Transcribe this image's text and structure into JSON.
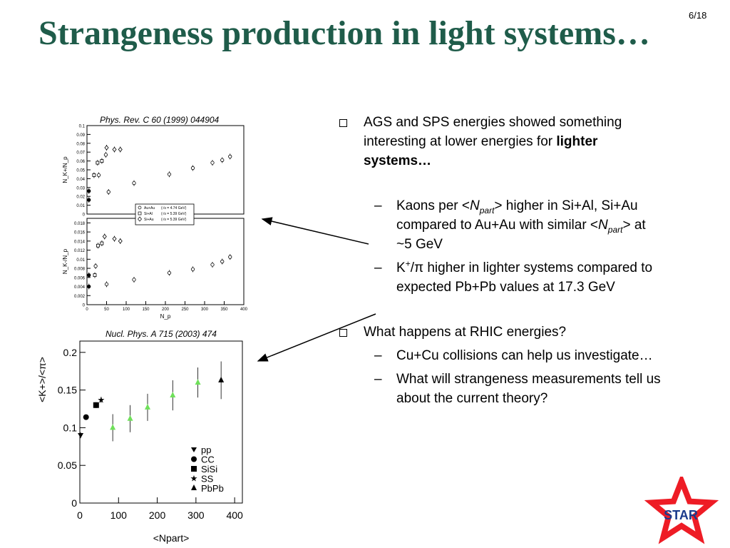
{
  "slide": {
    "number": "6/18",
    "title": "Strangeness production in light systems…"
  },
  "top_plot": {
    "caption": "Phys. Rev. C 60 (1999) 044904",
    "upper_ylabel": "N_K+/N_p",
    "lower_ylabel": "N_K-/N_p",
    "xlabel": "N_p",
    "upper_yticks": [
      "0",
      "0.01",
      "0.02",
      "0.03",
      "0.04",
      "0.05",
      "0.06",
      "0.07",
      "0.08",
      "0.09",
      "0.1"
    ],
    "lower_yticks": [
      "0",
      "0.002",
      "0.004",
      "0.006",
      "0.008",
      "0.01",
      "0.012",
      "0.014",
      "0.016",
      "0.018"
    ],
    "xticks": [
      "0",
      "50",
      "100",
      "150",
      "200",
      "250",
      "300",
      "350",
      "400"
    ],
    "legend": [
      {
        "system": "Au+Au",
        "energy": "(√s = 4.74 GeV)"
      },
      {
        "system": "Si+Al",
        "energy": "(√s = 5.39 GeV)"
      },
      {
        "system": "Si+Au",
        "energy": "(√s = 5.39 GeV)"
      }
    ],
    "upper_points": [
      {
        "x": 5,
        "y": 0.026,
        "m": "filled"
      },
      {
        "x": 5,
        "y": 0.016,
        "m": "filled"
      },
      {
        "x": 18,
        "y": 0.044,
        "m": "square"
      },
      {
        "x": 27,
        "y": 0.058,
        "m": "square"
      },
      {
        "x": 38,
        "y": 0.06,
        "m": "square"
      },
      {
        "x": 48,
        "y": 0.067,
        "m": "circle"
      },
      {
        "x": 50,
        "y": 0.075,
        "m": "diamond"
      },
      {
        "x": 70,
        "y": 0.073,
        "m": "diamond"
      },
      {
        "x": 85,
        "y": 0.073,
        "m": "diamond"
      },
      {
        "x": 55,
        "y": 0.025,
        "m": "circle"
      },
      {
        "x": 30,
        "y": 0.044,
        "m": "circle"
      },
      {
        "x": 120,
        "y": 0.035,
        "m": "circle"
      },
      {
        "x": 210,
        "y": 0.045,
        "m": "circle"
      },
      {
        "x": 270,
        "y": 0.052,
        "m": "circle"
      },
      {
        "x": 320,
        "y": 0.058,
        "m": "circle"
      },
      {
        "x": 345,
        "y": 0.061,
        "m": "circle"
      },
      {
        "x": 365,
        "y": 0.065,
        "m": "circle"
      }
    ],
    "lower_points": [
      {
        "x": 5,
        "y": 0.0065,
        "m": "filled"
      },
      {
        "x": 5,
        "y": 0.004,
        "m": "filled"
      },
      {
        "x": 20,
        "y": 0.0065,
        "m": "square"
      },
      {
        "x": 22,
        "y": 0.0085,
        "m": "circle"
      },
      {
        "x": 28,
        "y": 0.013,
        "m": "square"
      },
      {
        "x": 38,
        "y": 0.0135,
        "m": "square"
      },
      {
        "x": 45,
        "y": 0.015,
        "m": "diamond"
      },
      {
        "x": 70,
        "y": 0.0145,
        "m": "diamond"
      },
      {
        "x": 85,
        "y": 0.014,
        "m": "diamond"
      },
      {
        "x": 50,
        "y": 0.0045,
        "m": "circle"
      },
      {
        "x": 120,
        "y": 0.0055,
        "m": "circle"
      },
      {
        "x": 210,
        "y": 0.007,
        "m": "circle"
      },
      {
        "x": 270,
        "y": 0.0078,
        "m": "circle"
      },
      {
        "x": 320,
        "y": 0.0088,
        "m": "circle"
      },
      {
        "x": 345,
        "y": 0.0095,
        "m": "circle"
      },
      {
        "x": 365,
        "y": 0.0105,
        "m": "circle"
      }
    ]
  },
  "bottom_plot": {
    "caption": "Nucl. Phys. A 715 (2003) 474",
    "ylabel": "<K+>/<π>",
    "xlabel": "<Npart>",
    "yticks": [
      "0",
      "0.05",
      "0.1",
      "0.15",
      "0.2"
    ],
    "xticks": [
      "0",
      "100",
      "200",
      "300",
      "400"
    ],
    "legend": [
      "pp",
      "CC",
      "SiSi",
      "SS",
      "PbPb"
    ],
    "points": [
      {
        "system": "pp",
        "x": 2,
        "y": 0.09,
        "err": 0.004
      },
      {
        "system": "CC",
        "x": 16,
        "y": 0.114,
        "err": 0.003
      },
      {
        "system": "SiSi",
        "x": 42,
        "y": 0.13,
        "err": 0.004
      },
      {
        "system": "SS",
        "x": 55,
        "y": 0.137,
        "err": 0.004
      },
      {
        "system": "PbPb_green",
        "x": 85,
        "y": 0.1,
        "err": 0.018
      },
      {
        "system": "PbPb_green",
        "x": 130,
        "y": 0.112,
        "err": 0.018
      },
      {
        "system": "PbPb_green",
        "x": 175,
        "y": 0.127,
        "err": 0.018
      },
      {
        "system": "PbPb_green",
        "x": 240,
        "y": 0.143,
        "err": 0.02
      },
      {
        "system": "PbPb_green",
        "x": 305,
        "y": 0.16,
        "err": 0.02
      },
      {
        "system": "PbPb",
        "x": 365,
        "y": 0.163,
        "err": 0.025
      }
    ]
  },
  "bullets": {
    "b1": {
      "text": "AGS and SPS energies showed something interesting at lower energies for ",
      "bold": "lighter systems…"
    },
    "b1_sub1": {
      "a": "Kaons per <",
      "n": "N",
      "sub": "part",
      "b": "> higher in Si+Al, Si+Au compared to Au+Au with similar <",
      "c": "> at ~5 GeV"
    },
    "b1_sub2": {
      "a": "K",
      "sup": "+",
      "b": "/π higher in lighter systems compared to expected Pb+Pb values at 17.3 GeV"
    },
    "b2": {
      "text": "What happens at RHIC energies?"
    },
    "b2_sub1": "Cu+Cu collisions can help us investigate…",
    "b2_sub2": "What will strangeness measurements tell us about the current theory?"
  },
  "logo": {
    "text": "STAR",
    "star_color": "#ee1c25",
    "text_color": "#1a3a8c"
  },
  "colors": {
    "title": "#1f5c4a",
    "green_points": "#6fe05a"
  }
}
